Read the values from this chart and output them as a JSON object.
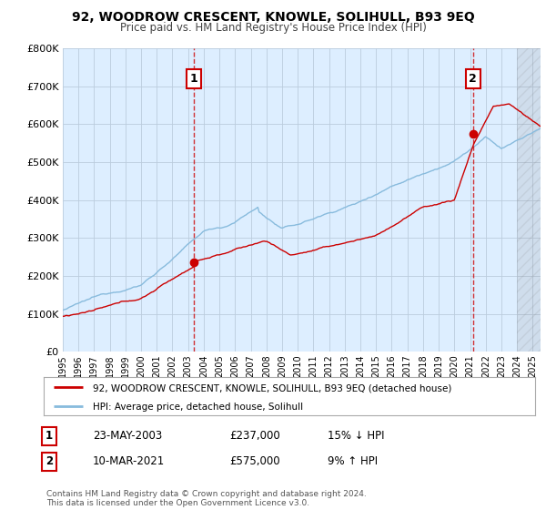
{
  "title": "92, WOODROW CRESCENT, KNOWLE, SOLIHULL, B93 9EQ",
  "subtitle": "Price paid vs. HM Land Registry's House Price Index (HPI)",
  "ylim": [
    0,
    800000
  ],
  "xlim_start": 1995.0,
  "xlim_end": 2025.5,
  "sale1_date": 2003.38,
  "sale1_price": 237000,
  "sale1_label": "1",
  "sale2_date": 2021.19,
  "sale2_price": 575000,
  "sale2_label": "2",
  "legend_line1": "92, WOODROW CRESCENT, KNOWLE, SOLIHULL, B93 9EQ (detached house)",
  "legend_line2": "HPI: Average price, detached house, Solihull",
  "table_row1_num": "1",
  "table_row1_date": "23-MAY-2003",
  "table_row1_price": "£237,000",
  "table_row1_hpi": "15% ↓ HPI",
  "table_row2_num": "2",
  "table_row2_date": "10-MAR-2021",
  "table_row2_price": "£575,000",
  "table_row2_hpi": "9% ↑ HPI",
  "footer": "Contains HM Land Registry data © Crown copyright and database right 2024.\nThis data is licensed under the Open Government Licence v3.0.",
  "color_red": "#cc0000",
  "color_blue": "#88bbdd",
  "color_dashed": "#cc0000",
  "background_chart": "#ddeeff",
  "background_fig": "#ffffff",
  "grid_color": "#bbccdd"
}
